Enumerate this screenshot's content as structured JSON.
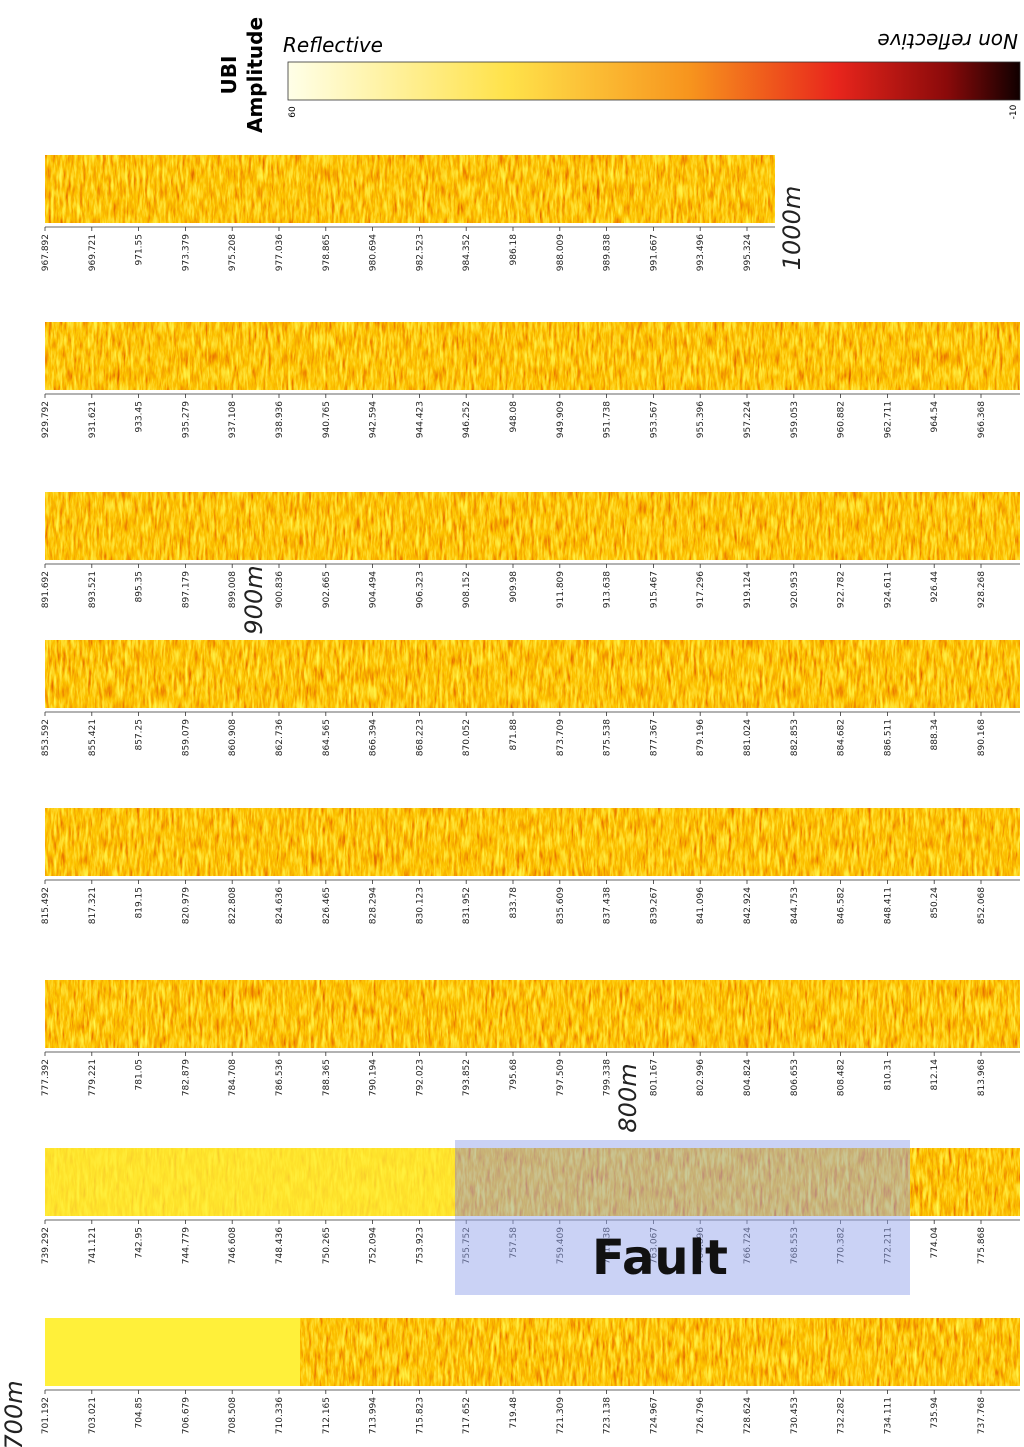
{
  "colorbar": {
    "title_lines": [
      "UBI",
      "Amplitude"
    ],
    "reflective_label": "Reflective",
    "non_reflective_label": "Non reflective",
    "max_label": "60",
    "min_label": "-10"
  },
  "depth_markers": [
    "1000m",
    "900m",
    "800m",
    "700m"
  ],
  "annotation": "Fault",
  "strips": [
    {
      "ticks": [
        "967.892",
        "969.721",
        "971.55",
        "973.379",
        "975.208",
        "977.036",
        "978.865",
        "980.694",
        "982.523",
        "984.352",
        "986.18",
        "988.009",
        "989.838",
        "991.667",
        "993.496",
        "995.324"
      ]
    },
    {
      "ticks": [
        "929.792",
        "931.621",
        "933.45",
        "935.279",
        "937.108",
        "938.936",
        "940.765",
        "942.594",
        "944.423",
        "946.252",
        "948.08",
        "949.909",
        "951.738",
        "953.567",
        "955.396",
        "957.224",
        "959.053",
        "960.882",
        "962.711",
        "964.54",
        "966.368"
      ]
    },
    {
      "ticks": [
        "891.692",
        "893.521",
        "895.35",
        "897.179",
        "899.008",
        "900.836",
        "902.665",
        "904.494",
        "906.323",
        "908.152",
        "909.98",
        "911.809",
        "913.638",
        "915.467",
        "917.296",
        "919.124",
        "920.953",
        "922.782",
        "924.611",
        "926.44",
        "928.268"
      ]
    },
    {
      "ticks": [
        "853.592",
        "855.421",
        "857.25",
        "859.079",
        "860.908",
        "862.736",
        "864.565",
        "866.394",
        "868.223",
        "870.052",
        "871.88",
        "873.709",
        "875.538",
        "877.367",
        "879.196",
        "881.024",
        "882.853",
        "884.682",
        "886.511",
        "888.34",
        "890.168"
      ]
    },
    {
      "ticks": [
        "815.492",
        "817.321",
        "819.15",
        "820.979",
        "822.808",
        "824.636",
        "826.465",
        "828.294",
        "830.123",
        "831.952",
        "833.78",
        "835.609",
        "837.438",
        "839.267",
        "841.096",
        "842.924",
        "844.753",
        "846.582",
        "848.411",
        "850.24",
        "852.068"
      ]
    },
    {
      "ticks": [
        "777.392",
        "779.221",
        "781.05",
        "782.879",
        "784.708",
        "786.536",
        "788.365",
        "790.194",
        "792.023",
        "793.852",
        "795.68",
        "797.509",
        "799.338",
        "801.167",
        "802.996",
        "804.824",
        "806.653",
        "808.482",
        "810.31",
        "812.14",
        "813.968"
      ]
    },
    {
      "ticks": [
        "739.292",
        "741.121",
        "742.95",
        "744.779",
        "746.608",
        "748.436",
        "750.265",
        "752.094",
        "753.923",
        "755.752",
        "757.58",
        "759.409",
        "761.238",
        "763.067",
        "764.896",
        "766.724",
        "768.553",
        "770.382",
        "772.211",
        "774.04",
        "775.868"
      ]
    },
    {
      "ticks": [
        "701.192",
        "703.021",
        "704.85",
        "706.679",
        "708.508",
        "710.336",
        "712.165",
        "713.994",
        "715.823",
        "717.652",
        "719.48",
        "721.309",
        "723.138",
        "724.967",
        "726.796",
        "728.624",
        "730.453",
        "732.282",
        "734.111",
        "735.94",
        "737.768"
      ]
    }
  ]
}
